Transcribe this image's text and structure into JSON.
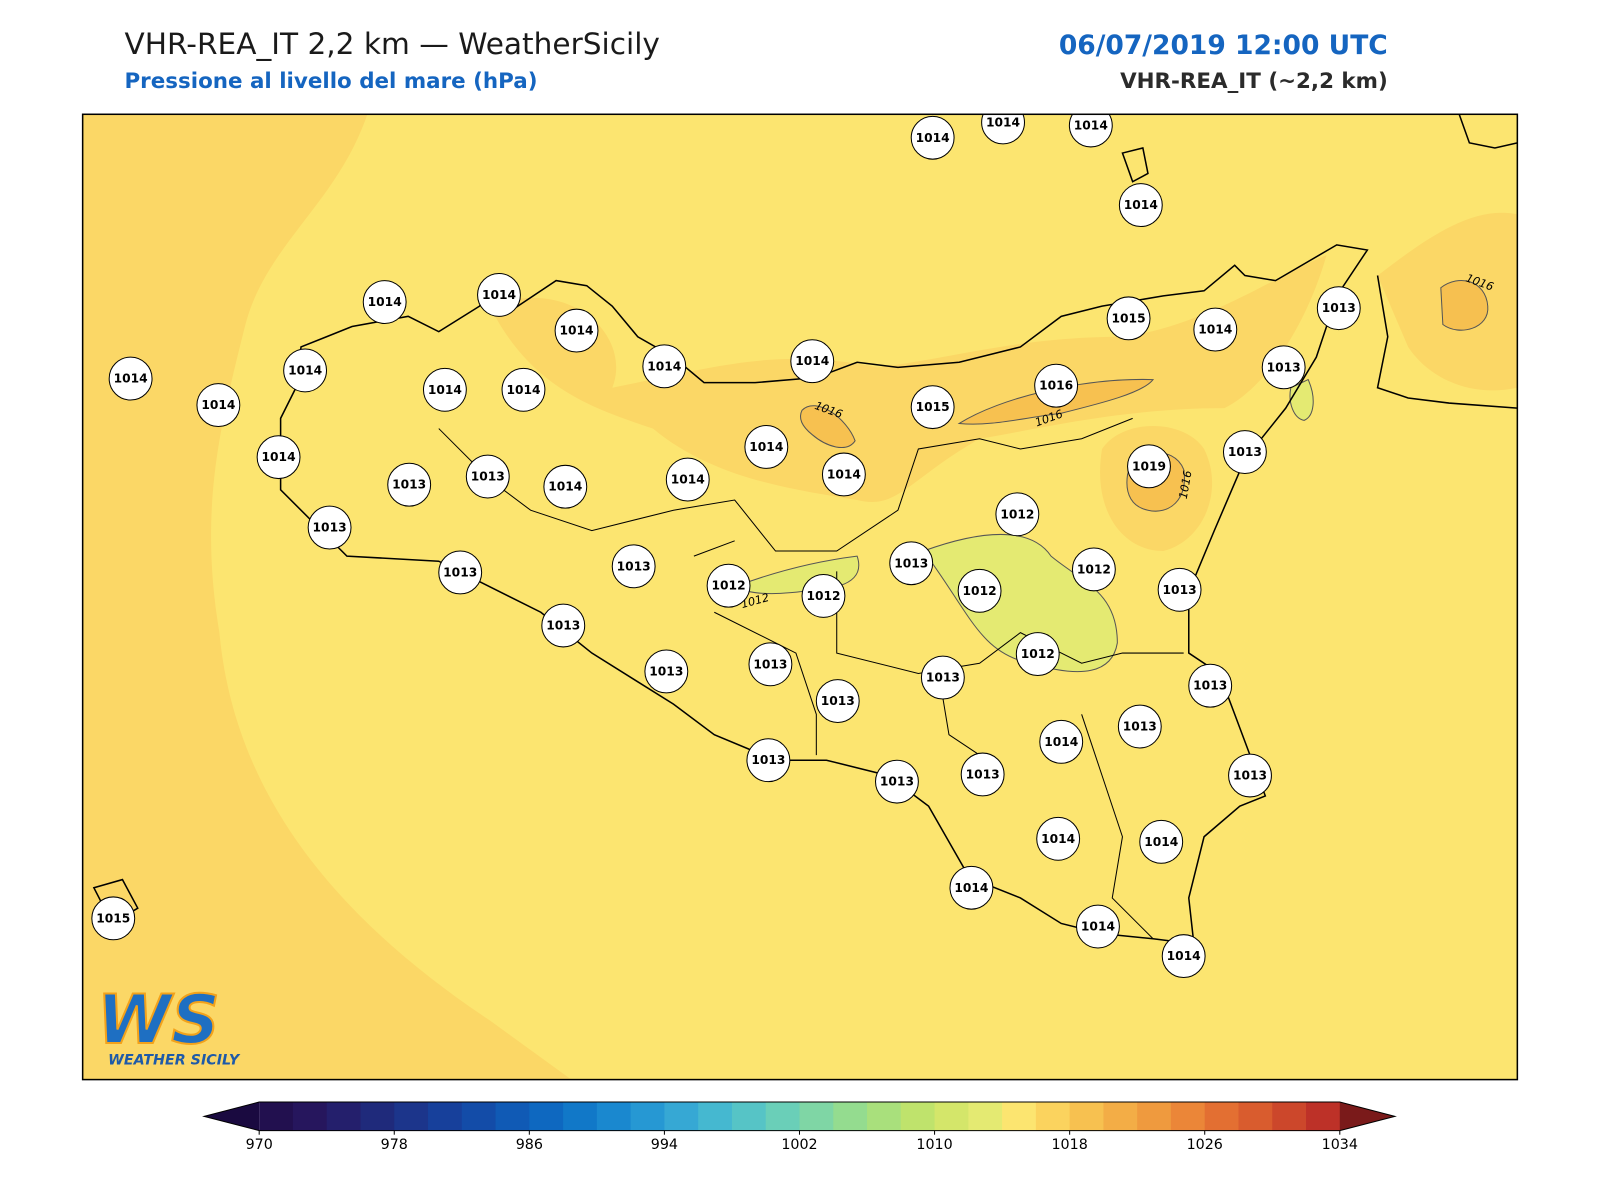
{
  "header": {
    "title": "VHR-REA_IT 2,2 km — WeatherSicily",
    "subtitle": "Pressione al livello del mare (hPa)",
    "datetime": "06/07/2019 12:00 UTC",
    "model": "VHR-REA_IT (~2,2 km)"
  },
  "map": {
    "stations": [
      1014,
      1014,
      1014,
      1014,
      1014,
      1014,
      1014,
      1014,
      1014,
      1014,
      1014,
      1014,
      1014,
      1014,
      1015,
      1014,
      1013,
      1013,
      1016,
      1015,
      1014,
      1013,
      1013,
      1014,
      1014,
      1014,
      1014,
      1019,
      1013,
      1012,
      1013,
      1013,
      1013,
      1012,
      1012,
      1013,
      1012,
      1012,
      1013,
      1013,
      1013,
      1013,
      1012,
      1013,
      1013,
      1013,
      1013,
      1014,
      1013,
      1013,
      1013,
      1013,
      1014,
      1014,
      1014,
      1014,
      1014,
      1015
    ],
    "contour_labels": [
      1016,
      1016,
      1016,
      1016,
      1012
    ]
  },
  "logo": {
    "mark": "WS",
    "name": "WEATHER SICILY"
  },
  "colorbar": {
    "lim": [
      970,
      1034
    ],
    "ticks": [
      970,
      978,
      986,
      994,
      1002,
      1010,
      1018,
      1026,
      1034
    ],
    "colors": [
      "#22104f",
      "#26165d",
      "#241f6c",
      "#1f2a7b",
      "#1c358b",
      "#17409b",
      "#134ca8",
      "#105ab5",
      "#0e68c0",
      "#1178c8",
      "#1a88cf",
      "#2698d3",
      "#36a8d4",
      "#45b8d0",
      "#56c4c6",
      "#6acfb8",
      "#7fd6a5",
      "#94dc8f",
      "#a9e07c",
      "#bfe36c",
      "#d4e66a",
      "#e4ea72",
      "#fce570",
      "#fbd35e",
      "#f7c150",
      "#f3ad46",
      "#ef9a3e",
      "#eb8638",
      "#e36f32",
      "#d95c2e",
      "#cc472b",
      "#bd3128"
    ],
    "under": "#1a0a40",
    "over": "#7a1a1a"
  }
}
